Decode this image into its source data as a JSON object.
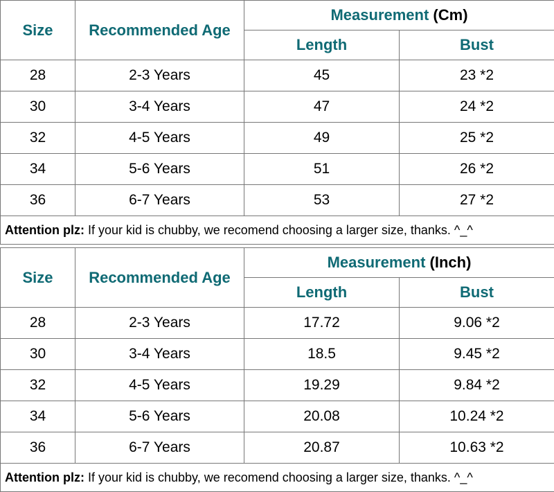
{
  "colors": {
    "teal": "#0f6a74",
    "black": "#000000",
    "border": "#777777",
    "bg": "#ffffff"
  },
  "common": {
    "size_header": "Size",
    "age_header": "Recommended Age",
    "meas_header": "Measurement",
    "length_header": "Length",
    "bust_header": "Bust",
    "note_label": "Attention plz:",
    "note_text": " If your kid is chubby, we recomend choosing a larger size, thanks. ^_^"
  },
  "table_cm": {
    "unit_label": " (Cm)",
    "rows": [
      {
        "size": "28",
        "age": "2-3 Years",
        "length": "45",
        "bust": "23 *2"
      },
      {
        "size": "30",
        "age": "3-4 Years",
        "length": "47",
        "bust": "24 *2"
      },
      {
        "size": "32",
        "age": "4-5 Years",
        "length": "49",
        "bust": "25 *2"
      },
      {
        "size": "34",
        "age": "5-6 Years",
        "length": "51",
        "bust": "26 *2"
      },
      {
        "size": "36",
        "age": "6-7 Years",
        "length": "53",
        "bust": "27 *2"
      }
    ]
  },
  "table_inch": {
    "unit_label": " (Inch)",
    "rows": [
      {
        "size": "28",
        "age": "2-3 Years",
        "length": "17.72",
        "bust": "9.06 *2"
      },
      {
        "size": "30",
        "age": "3-4 Years",
        "length": "18.5",
        "bust": "9.45 *2"
      },
      {
        "size": "32",
        "age": "4-5 Years",
        "length": "19.29",
        "bust": "9.84 *2"
      },
      {
        "size": "34",
        "age": "5-6 Years",
        "length": "20.08",
        "bust": "10.24 *2"
      },
      {
        "size": "36",
        "age": "6-7 Years",
        "length": "20.87",
        "bust": "10.63 *2"
      }
    ]
  }
}
